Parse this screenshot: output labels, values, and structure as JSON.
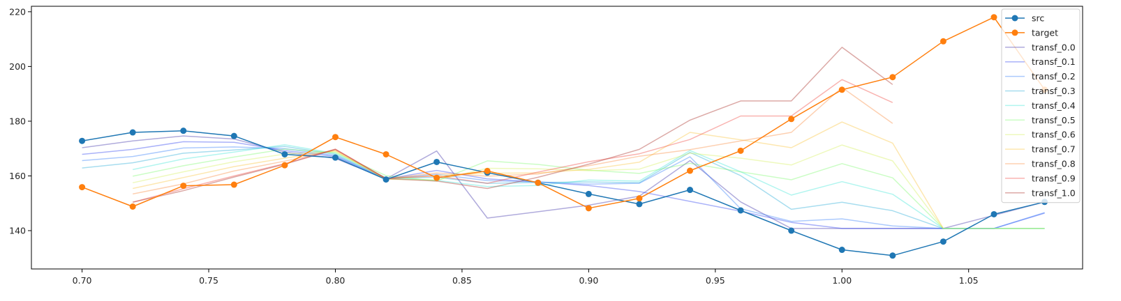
{
  "chart_data": {
    "type": "line",
    "title": "",
    "xlabel": "",
    "ylabel": "",
    "xlim": [
      0.68,
      1.095
    ],
    "ylim": [
      126,
      222
    ],
    "x_ticks": [
      0.7,
      0.75,
      0.8,
      0.85,
      0.9,
      0.95,
      1.0,
      1.05
    ],
    "x_tick_labels": [
      "0.70",
      "0.75",
      "0.80",
      "0.85",
      "0.90",
      "0.95",
      "1.00",
      "1.05"
    ],
    "y_ticks": [
      140,
      160,
      180,
      200,
      220
    ],
    "y_tick_labels": [
      "140",
      "160",
      "180",
      "200",
      "220"
    ],
    "grid": false,
    "legend_position": "top-right",
    "series": [
      {
        "name": "src",
        "color": "#1f77b4",
        "marker": true,
        "alpha": 1,
        "x": [
          0.7,
          0.72,
          0.74,
          0.76,
          0.78,
          0.8,
          0.82,
          0.84,
          0.86,
          0.88,
          0.9,
          0.92,
          0.94,
          0.96,
          0.98,
          1.0,
          1.02,
          1.04,
          1.06,
          1.08
        ],
        "y": [
          172.8,
          175.9,
          176.5,
          174.6,
          167.9,
          166.7,
          158.7,
          165.1,
          161.2,
          157.5,
          153.4,
          149.7,
          154.9,
          147.4,
          140.0,
          133.0,
          130.9,
          136.0,
          146.0,
          150.5
        ]
      },
      {
        "name": "target",
        "color": "#ff7f0e",
        "marker": true,
        "alpha": 1,
        "x": [
          0.7,
          0.72,
          0.74,
          0.76,
          0.78,
          0.8,
          0.82,
          0.84,
          0.86,
          0.88,
          0.9,
          0.92,
          0.94,
          0.96,
          0.98,
          1.0,
          1.02,
          1.04,
          1.06,
          1.08
        ],
        "y": [
          155.9,
          148.8,
          156.4,
          156.8,
          163.9,
          174.2,
          167.9,
          159.3,
          161.8,
          157.5,
          148.2,
          151.8,
          161.9,
          169.2,
          180.8,
          191.5,
          196.1,
          209.2,
          218.0,
          191.5
        ]
      },
      {
        "name": "transf_0.0",
        "color": "#3a2ca8",
        "marker": false,
        "alpha": 0.4,
        "x": [
          0.7,
          0.72,
          0.74,
          0.76,
          0.78,
          0.8,
          0.82,
          0.84,
          0.86,
          0.88,
          0.9,
          0.92,
          0.94,
          0.96,
          0.98,
          1.0,
          1.02,
          1.04,
          1.06,
          1.08
        ],
        "y": [
          170.3,
          172.8,
          174.6,
          173.5,
          168.7,
          166.4,
          158.9,
          169.1,
          144.6,
          146.9,
          149.3,
          152.6,
          165.6,
          150.5,
          140.8,
          140.8,
          140.8,
          140.8,
          145.6,
          150.5
        ]
      },
      {
        "name": "transf_0.1",
        "color": "#2b3ff0",
        "marker": false,
        "alpha": 0.4,
        "x": [
          0.7,
          0.72,
          0.74,
          0.76,
          0.78,
          0.8,
          0.82,
          0.84,
          0.86,
          0.88,
          0.9,
          0.92,
          0.94,
          0.96,
          0.98,
          1.0,
          1.02,
          1.04,
          1.06,
          1.08
        ],
        "y": [
          167.9,
          169.7,
          172.5,
          172.3,
          169.3,
          167.1,
          158.9,
          162.0,
          158.9,
          157.8,
          156.5,
          154.3,
          150.7,
          147.1,
          143.0,
          140.8,
          140.8,
          140.8,
          140.8,
          146.4
        ]
      },
      {
        "name": "transf_0.2",
        "color": "#2f7bfa",
        "marker": false,
        "alpha": 0.4,
        "x": [
          0.7,
          0.72,
          0.74,
          0.76,
          0.78,
          0.8,
          0.82,
          0.84,
          0.86,
          0.88,
          0.9,
          0.92,
          0.94,
          0.96,
          0.98,
          1.0,
          1.02,
          1.04,
          1.06,
          1.08
        ],
        "y": [
          165.6,
          167.1,
          170.2,
          170.6,
          170.0,
          167.4,
          159.0,
          160.6,
          158.3,
          157.8,
          157.0,
          157.3,
          167.0,
          148.0,
          143.4,
          144.3,
          141.7,
          140.8,
          140.8,
          146.6
        ]
      },
      {
        "name": "transf_0.3",
        "color": "#22a9d8",
        "marker": false,
        "alpha": 0.4,
        "x": [
          0.7,
          0.72,
          0.74,
          0.76,
          0.78,
          0.8,
          0.82,
          0.84,
          0.86,
          0.88,
          0.9,
          0.92,
          0.94,
          0.96,
          0.98,
          1.0,
          1.02,
          1.04,
          1.06,
          1.08
        ],
        "y": [
          162.9,
          164.8,
          168.3,
          169.5,
          170.8,
          167.8,
          159.1,
          159.5,
          157.3,
          157.6,
          157.8,
          157.5,
          168.6,
          160.1,
          147.8,
          150.4,
          147.3,
          140.8,
          140.8,
          140.8
        ]
      },
      {
        "name": "transf_0.4",
        "color": "#3be6d6",
        "marker": false,
        "alpha": 0.4,
        "x": [
          0.72,
          0.74,
          0.76,
          0.78,
          0.8,
          0.82,
          0.84,
          0.86,
          0.88,
          0.9,
          0.92,
          0.94,
          0.96,
          0.98,
          1.0,
          1.02,
          1.04,
          1.06,
          1.08
        ],
        "y": [
          162.3,
          166.2,
          168.7,
          171.4,
          168.2,
          159.3,
          158.4,
          156.1,
          156.5,
          158.5,
          158.1,
          169.3,
          161.5,
          153.0,
          157.9,
          153.3,
          140.8,
          140.8,
          140.8
        ]
      },
      {
        "name": "transf_0.5",
        "color": "#7dfa6e",
        "marker": false,
        "alpha": 0.4,
        "x": [
          0.72,
          0.74,
          0.76,
          0.78,
          0.8,
          0.82,
          0.84,
          0.86,
          0.88,
          0.9,
          0.92,
          0.94,
          0.96,
          0.98,
          1.0,
          1.02,
          1.04,
          1.06,
          1.08
        ],
        "y": [
          159.9,
          163.7,
          166.9,
          169.8,
          168.5,
          160.1,
          158.1,
          165.5,
          164.2,
          162.1,
          160.9,
          164.6,
          161.5,
          158.6,
          164.5,
          159.3,
          140.8,
          140.8,
          140.8
        ]
      },
      {
        "name": "transf_0.6",
        "color": "#d4f05a",
        "marker": false,
        "alpha": 0.4,
        "x": [
          0.72,
          0.74,
          0.76,
          0.78,
          0.8,
          0.82,
          0.84,
          0.86,
          0.88,
          0.9,
          0.92,
          0.94,
          0.96,
          0.98,
          1.0,
          1.02,
          1.04,
          1.06,
          1.08
        ],
        "y": [
          157.5,
          161.5,
          165.2,
          168.0,
          168.9,
          158.8,
          158.5,
          162.8,
          162.6,
          161.9,
          162.5,
          168.3,
          166.5,
          164.0,
          171.3,
          165.5,
          140.8,
          140.8,
          140.8
        ]
      },
      {
        "name": "transf_0.7",
        "color": "#fbc23a",
        "marker": false,
        "alpha": 0.4,
        "x": [
          0.72,
          0.74,
          0.76,
          0.78,
          0.8,
          0.82,
          0.84,
          0.86,
          0.88,
          0.9,
          0.92,
          0.94,
          0.96,
          0.98,
          1.0,
          1.02,
          1.04
        ],
        "y": [
          155.4,
          159.4,
          163.4,
          166.5,
          169.2,
          158.8,
          160.2,
          161.0,
          161.1,
          162.4,
          165.0,
          175.9,
          173.2,
          170.3,
          179.7,
          172.0,
          140.8
        ]
      },
      {
        "name": "transf_0.8",
        "color": "#fb8a3c",
        "marker": false,
        "alpha": 0.4,
        "x": [
          0.72,
          0.74,
          0.76,
          0.78,
          0.8,
          0.82,
          0.84,
          0.86,
          0.88,
          0.9,
          0.92,
          0.94,
          0.96,
          0.98,
          1.0,
          1.02
        ],
        "y": [
          153.4,
          157.1,
          161.8,
          165.4,
          169.5,
          159.0,
          161.1,
          159.9,
          160.7,
          163.7,
          167.2,
          169.6,
          172.8,
          175.9,
          192.3,
          179.2
        ]
      },
      {
        "name": "transf_0.9",
        "color": "#f0403a",
        "marker": false,
        "alpha": 0.4,
        "x": [
          0.72,
          0.74,
          0.76,
          0.78,
          0.8,
          0.82,
          0.84,
          0.86,
          0.88,
          0.9,
          0.92,
          0.94,
          0.96,
          0.98,
          1.0,
          1.02
        ],
        "y": [
          150.4,
          155.3,
          160.0,
          164.5,
          169.8,
          159.1,
          160.0,
          157.3,
          161.4,
          165.2,
          168.1,
          173.3,
          181.9,
          181.9,
          195.2,
          186.8
        ]
      },
      {
        "name": "transf_1.0",
        "color": "#a82820",
        "marker": false,
        "alpha": 0.4,
        "x": [
          0.72,
          0.74,
          0.76,
          0.78,
          0.8,
          0.82,
          0.84,
          0.86,
          0.88,
          0.9,
          0.92,
          0.94,
          0.96,
          0.98,
          1.0,
          1.02
        ],
        "y": [
          150.4,
          154.6,
          159.6,
          164.3,
          169.7,
          159.0,
          158.1,
          155.4,
          159.5,
          164.3,
          169.7,
          180.4,
          187.4,
          187.4,
          207.0,
          193.4
        ]
      }
    ]
  }
}
